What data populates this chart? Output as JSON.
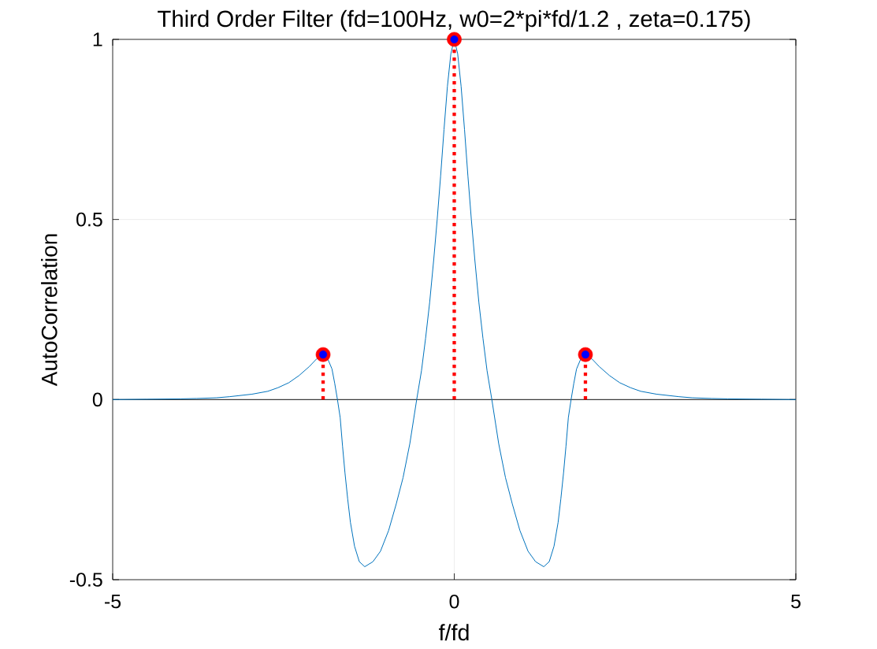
{
  "chart_data": {
    "type": "line",
    "title": "Third Order Filter (fd=100Hz, w0=2*pi*fd/1.2 , zeta=0.175)",
    "xlabel": "f/fd",
    "ylabel": "AutoCorrelation",
    "xlim": [
      -5,
      5
    ],
    "ylim": [
      -0.5,
      1
    ],
    "xticks": [
      -5,
      0,
      5
    ],
    "yticks": [
      -0.5,
      0,
      0.5,
      1
    ],
    "grid": true,
    "ref_lines": [
      {
        "axis": "y",
        "value": 0,
        "color": "#000000"
      }
    ],
    "series": [
      {
        "color": "#0072bd",
        "x": [
          -5,
          -4.5,
          -4,
          -3.77,
          -3.48,
          -3.29,
          -2.96,
          -2.73,
          -2.58,
          -2.42,
          -2.27,
          -2.12,
          -2.02,
          -1.92,
          -1.85,
          -1.79,
          -1.75,
          -1.71,
          -1.67,
          -1.635,
          -1.6,
          -1.56,
          -1.52,
          -1.46,
          -1.39,
          -1.31,
          -1.19,
          -1.08,
          -0.96,
          -0.85,
          -0.75,
          -0.65,
          -0.55,
          -0.48,
          -0.42,
          -0.36,
          -0.3,
          -0.25,
          -0.2,
          -0.15,
          -0.1,
          -0.05,
          0,
          0.05,
          0.1,
          0.15,
          0.2,
          0.25,
          0.3,
          0.36,
          0.42,
          0.48,
          0.55,
          0.65,
          0.75,
          0.85,
          0.96,
          1.08,
          1.19,
          1.31,
          1.39,
          1.46,
          1.52,
          1.56,
          1.6,
          1.635,
          1.67,
          1.71,
          1.75,
          1.79,
          1.85,
          1.92,
          2.02,
          2.12,
          2.27,
          2.42,
          2.58,
          2.73,
          2.96,
          3.29,
          3.48,
          3.77,
          4,
          4.5,
          5
        ],
        "values": [
          0,
          0.001,
          0.002,
          0.003,
          0.005,
          0.008,
          0.015,
          0.023,
          0.033,
          0.047,
          0.067,
          0.092,
          0.112,
          0.125,
          0.112,
          0.085,
          0.045,
          0,
          -0.05,
          -0.13,
          -0.203,
          -0.276,
          -0.341,
          -0.407,
          -0.45,
          -0.464,
          -0.45,
          -0.421,
          -0.363,
          -0.29,
          -0.217,
          -0.122,
          0,
          0.08,
          0.17,
          0.27,
          0.39,
          0.5,
          0.62,
          0.75,
          0.87,
          0.96,
          1,
          0.96,
          0.87,
          0.75,
          0.62,
          0.5,
          0.39,
          0.27,
          0.17,
          0.08,
          0,
          -0.122,
          -0.217,
          -0.29,
          -0.363,
          -0.421,
          -0.45,
          -0.464,
          -0.45,
          -0.407,
          -0.341,
          -0.276,
          -0.203,
          -0.13,
          -0.05,
          0,
          0.045,
          0.085,
          0.112,
          0.125,
          0.112,
          0.092,
          0.067,
          0.047,
          0.033,
          0.023,
          0.015,
          0.008,
          0.005,
          0.003,
          0.002,
          0.001,
          0
        ]
      },
      {
        "type": "lollipop",
        "color": "#ff0000",
        "x": [
          -1.92,
          0,
          1.92
        ],
        "values": [
          0.125,
          1,
          0.125
        ],
        "line_style": "dotted",
        "marker": "circle"
      },
      {
        "type": "scatter",
        "color": "#0000ff",
        "x": [
          -1.92,
          0,
          1.92
        ],
        "values": [
          0.125,
          1,
          0.125
        ],
        "marker": "circle"
      }
    ]
  }
}
